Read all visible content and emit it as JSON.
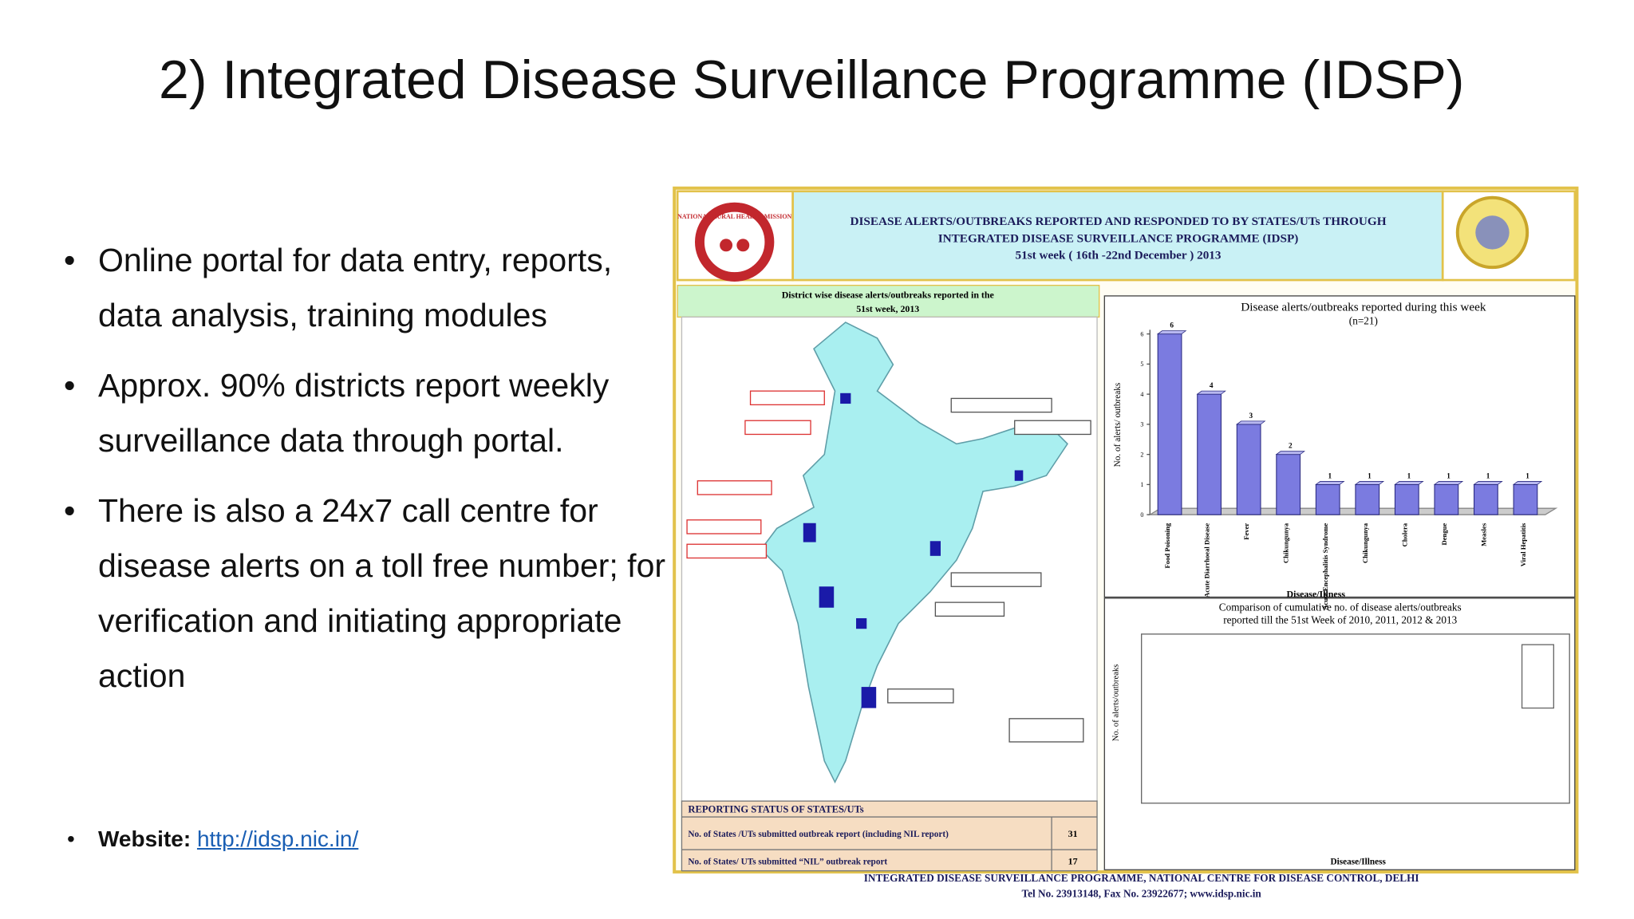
{
  "title": "2) Integrated Disease Surveillance Programme (IDSP)",
  "bullets": [
    "Online portal for data entry, reports, data  analysis, training modules",
    "Approx. 90% districts report weekly surveillance data through portal.",
    "There is also a 24x7 call centre for disease alerts on a toll free number; for verification and initiating appropriate action"
  ],
  "website": {
    "label": "Website:",
    "link": "http://idsp.nic.in/"
  },
  "poster": {
    "logo_text": "NATIONAL RURAL HEALTH MISSION",
    "header": [
      "DISEASE ALERTS/OUTBREAKS REPORTED AND RESPONDED TO BY STATES/UTs THROUGH",
      "INTEGRATED DISEASE SURVEILLANCE PROGRAMME (IDSP)",
      "51st week ( 16th -22nd December ) 2013"
    ],
    "map_title": [
      "District wise disease alerts/outbreaks reported in the",
      "51st week, 2013"
    ],
    "status_table": {
      "title": "REPORTING STATUS OF STATES/UTs",
      "rows": [
        [
          "No. of States /UTs submitted outbreak report (including NIL report)",
          31
        ],
        [
          "No. of States/ UTs submitted “NIL” outbreak report",
          17
        ]
      ]
    },
    "weekly_chart": {
      "type": "bar",
      "title": "Disease alerts/outbreaks reported during this week",
      "subtitle": "(n=21)",
      "y_label": "No. of alerts/ outbreaks",
      "x_label": "Disease/Illness",
      "categories": [
        "Food Poisoning",
        "Acute Diarrhoeal Disease",
        "Fever",
        "Chikungunya",
        "Acute Encephalitis Syndrome",
        "Chikungunya",
        "Cholera",
        "Dengue",
        "Measles",
        "Viral Hepatitis"
      ],
      "values": [
        6,
        4,
        3,
        2,
        1,
        1,
        1,
        1,
        1,
        1
      ],
      "color": "#7b7be0",
      "ylim": [
        0,
        6
      ],
      "yticks": [
        0,
        1,
        2,
        3,
        4,
        5,
        6
      ]
    },
    "comparison_chart": {
      "title": [
        "Comparison of cumulative no. of disease alerts/outbreaks",
        "reported till the 51st Week of 2010, 2011, 2012 & 2013"
      ],
      "y_label": "No. of alerts/outbreaks",
      "x_label": "Disease/Illness"
    },
    "footer": [
      "INTEGRATED DISEASE SURVEILLANCE PROGRAMME, NATIONAL CENTRE FOR DISEASE CONTROL, DELHI",
      "Tel No. 23913148, Fax No. 23922677; www.idsp.nic.in"
    ]
  }
}
